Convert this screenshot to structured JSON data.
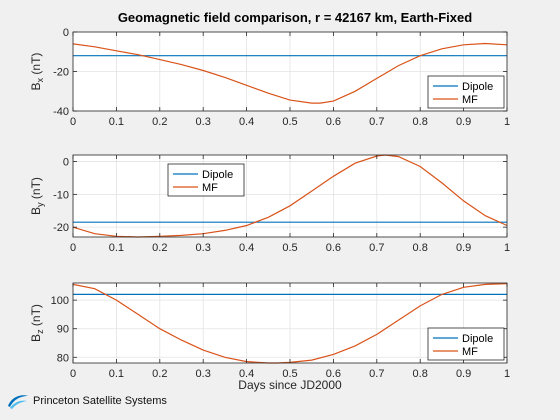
{
  "chart_data": {
    "title": "Geomagnetic field comparison, r = 42167 km, Earth-Fixed",
    "xlabel": "Days since JD2000",
    "x_ticks": [
      "0",
      "0.1",
      "0.2",
      "0.3",
      "0.4",
      "0.5",
      "0.6",
      "0.7",
      "0.8",
      "0.9",
      "1"
    ],
    "xlim": [
      0,
      1
    ],
    "subplots": [
      {
        "type": "line",
        "ylabel_base": "B",
        "ylabel_sub": "x",
        "ylabel_unit": "(nT)",
        "ylim": [
          -40,
          0
        ],
        "y_ticks": [
          "-40",
          "-20",
          "0"
        ],
        "legend": "bottom-right",
        "series": [
          {
            "name": "Dipole",
            "color": "#0072BD",
            "x": [
              0,
              1
            ],
            "y": [
              -12,
              -12
            ]
          },
          {
            "name": "MF",
            "color": "#D95319",
            "x": [
              0,
              0.05,
              0.1,
              0.15,
              0.2,
              0.25,
              0.3,
              0.35,
              0.4,
              0.45,
              0.5,
              0.55,
              0.57,
              0.6,
              0.65,
              0.7,
              0.75,
              0.8,
              0.85,
              0.9,
              0.95,
              1
            ],
            "y": [
              -6,
              -7.5,
              -9.5,
              -11.5,
              -14,
              -16.5,
              -19.5,
              -23,
              -27,
              -31,
              -34.5,
              -36,
              -36,
              -35,
              -30,
              -23.5,
              -17,
              -12,
              -8.5,
              -6.5,
              -5.8,
              -6.5
            ]
          }
        ]
      },
      {
        "type": "line",
        "ylabel_base": "B",
        "ylabel_sub": "y",
        "ylabel_unit": "(nT)",
        "ylim": [
          -23,
          2
        ],
        "y_ticks": [
          "-20",
          "-10",
          "0"
        ],
        "legend": "top-left",
        "series": [
          {
            "name": "Dipole",
            "color": "#0072BD",
            "x": [
              0,
              1
            ],
            "y": [
              -18.5,
              -18.5
            ]
          },
          {
            "name": "MF",
            "color": "#D95319",
            "x": [
              0,
              0.05,
              0.1,
              0.15,
              0.2,
              0.25,
              0.3,
              0.35,
              0.4,
              0.45,
              0.5,
              0.55,
              0.6,
              0.65,
              0.7,
              0.72,
              0.75,
              0.8,
              0.85,
              0.9,
              0.95,
              1
            ],
            "y": [
              -20,
              -22,
              -22.8,
              -23,
              -22.8,
              -22.5,
              -22,
              -21,
              -19.5,
              -17,
              -13.5,
              -9,
              -4.5,
              -0.5,
              1.7,
              2,
              1.5,
              -1.5,
              -6.5,
              -12,
              -16.5,
              -19.5
            ]
          }
        ]
      },
      {
        "type": "line",
        "ylabel_base": "B",
        "ylabel_sub": "z",
        "ylabel_unit": "(nT)",
        "ylim": [
          78,
          106
        ],
        "y_ticks": [
          "80",
          "90",
          "100"
        ],
        "legend": "bottom-right",
        "series": [
          {
            "name": "Dipole",
            "color": "#0072BD",
            "x": [
              0,
              1
            ],
            "y": [
              102,
              102
            ]
          },
          {
            "name": "MF",
            "color": "#D95319",
            "x": [
              0,
              0.05,
              0.1,
              0.15,
              0.2,
              0.25,
              0.3,
              0.35,
              0.4,
              0.45,
              0.47,
              0.5,
              0.55,
              0.6,
              0.65,
              0.7,
              0.75,
              0.8,
              0.85,
              0.9,
              0.95,
              1
            ],
            "y": [
              105.5,
              104,
              100,
              95,
              90,
              86,
              82.5,
              80,
              78.5,
              78,
              78,
              78.2,
              79,
              81,
              84,
              88,
              93,
              98,
              102,
              104.5,
              105.5,
              105.8
            ]
          }
        ]
      }
    ]
  },
  "branding": {
    "logo_text": "Princeton Satellite Systems"
  }
}
